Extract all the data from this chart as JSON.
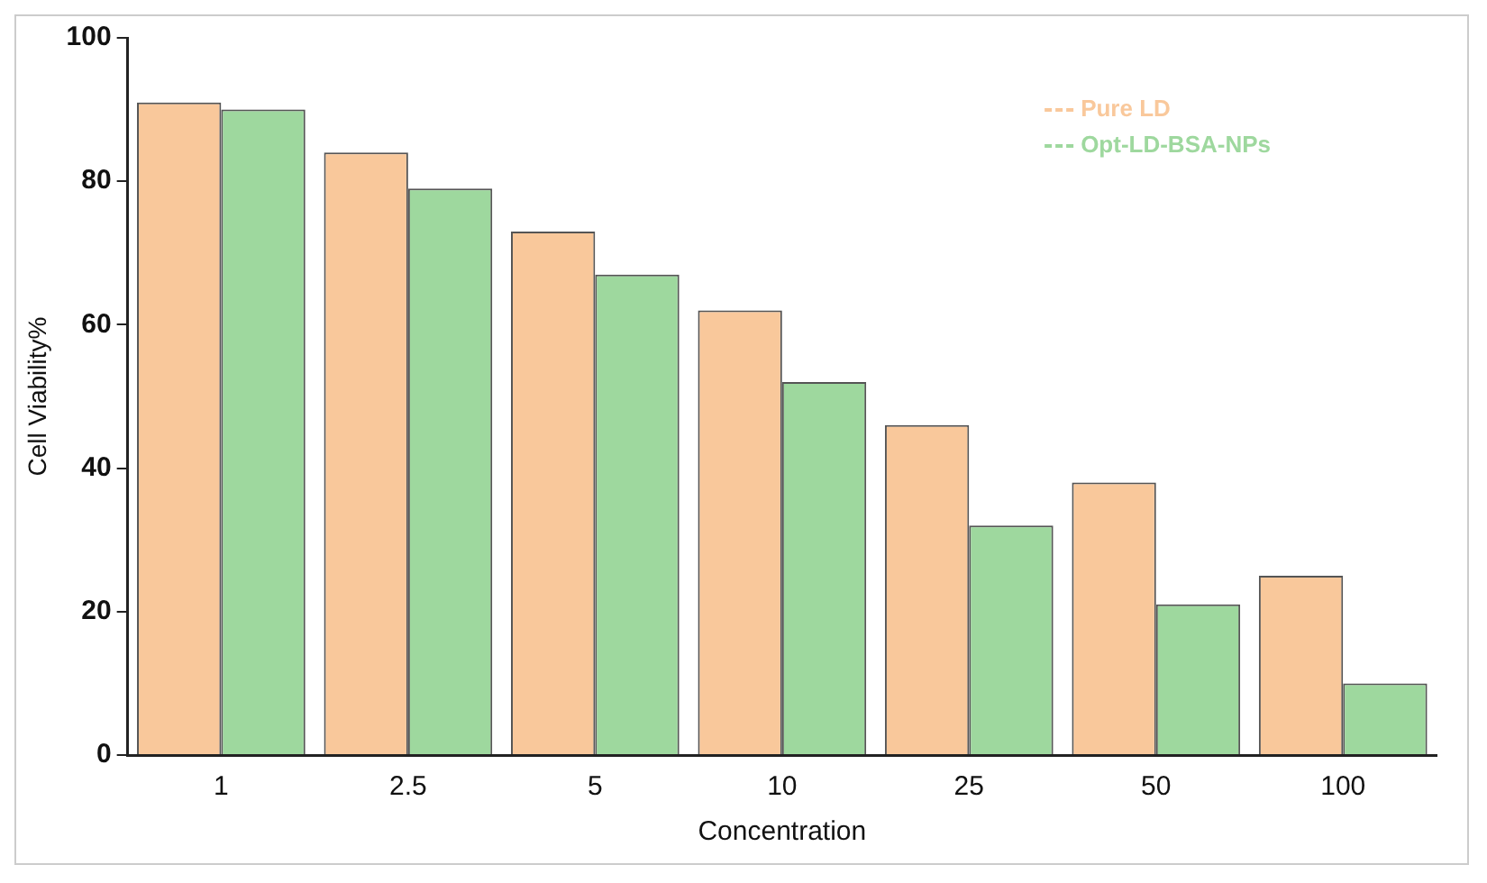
{
  "chart_data": {
    "type": "bar",
    "xlabel": "Concentration",
    "ylabel": "Cell Viability%",
    "categories": [
      "1",
      "2.5",
      "5",
      "10",
      "25",
      "50",
      "100"
    ],
    "series": [
      {
        "name": "Pure LD",
        "color": "#f9c89b",
        "values": [
          91,
          84,
          73,
          62,
          46,
          38,
          25
        ]
      },
      {
        "name": "Opt-LD-BSA-NPs",
        "color": "#9ed89e",
        "values": [
          90,
          79,
          67,
          52,
          32,
          21,
          10
        ]
      }
    ],
    "ylim": [
      0,
      100
    ],
    "yticks": [
      0,
      20,
      40,
      60,
      80,
      100
    ],
    "grid": false,
    "legend": "top right"
  }
}
